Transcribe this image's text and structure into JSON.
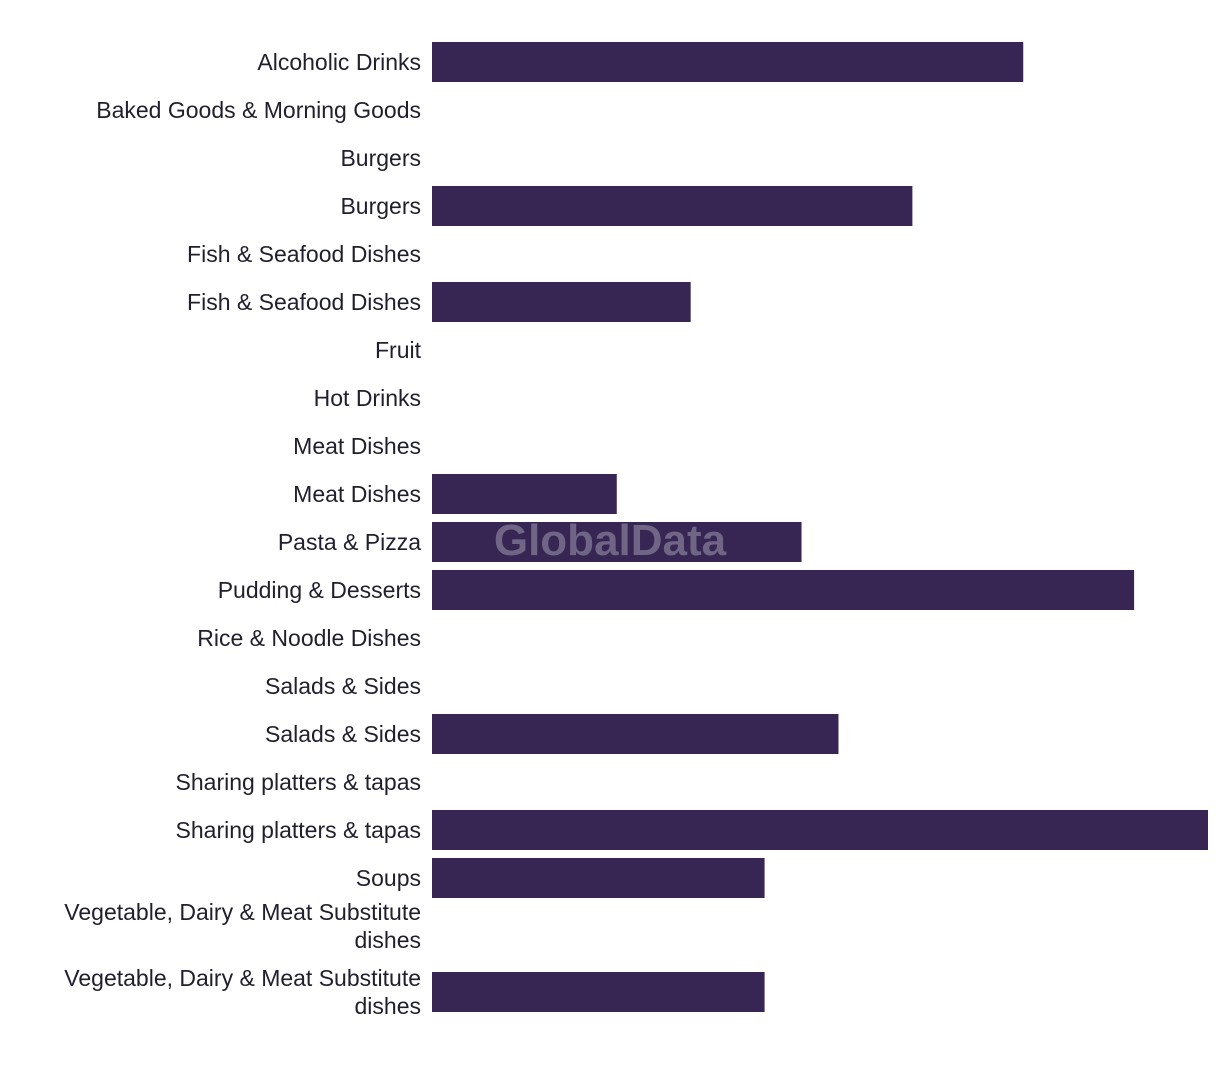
{
  "chart_data": {
    "type": "bar",
    "orientation": "horizontal",
    "categories": [
      "Alcoholic Drinks",
      "Baked Goods & Morning Goods",
      "Burgers",
      "Burgers",
      "Fish & Seafood Dishes",
      "Fish & Seafood Dishes",
      "Fruit",
      "Hot Drinks",
      "Meat Dishes",
      "Meat Dishes",
      "Pasta & Pizza",
      "Pudding & Desserts",
      "Rice & Noodle Dishes",
      "Salads & Sides",
      "Salads & Sides",
      "Sharing platters & tapas",
      "Sharing platters & tapas",
      "Soups",
      "Vegetable, Dairy & Meat Substitute dishes",
      "Vegetable, Dairy & Meat Substitute dishes"
    ],
    "values": [
      16,
      0,
      0,
      13,
      0,
      7,
      0,
      0,
      0,
      5,
      10,
      19,
      0,
      0,
      11,
      0,
      21,
      9,
      0,
      9
    ],
    "xlim": [
      0,
      21
    ],
    "title": "",
    "xlabel": "",
    "ylabel": "",
    "grid": false,
    "legend": "none",
    "bar_color": "#372554"
  },
  "watermark": {
    "text": "GlobalData"
  }
}
